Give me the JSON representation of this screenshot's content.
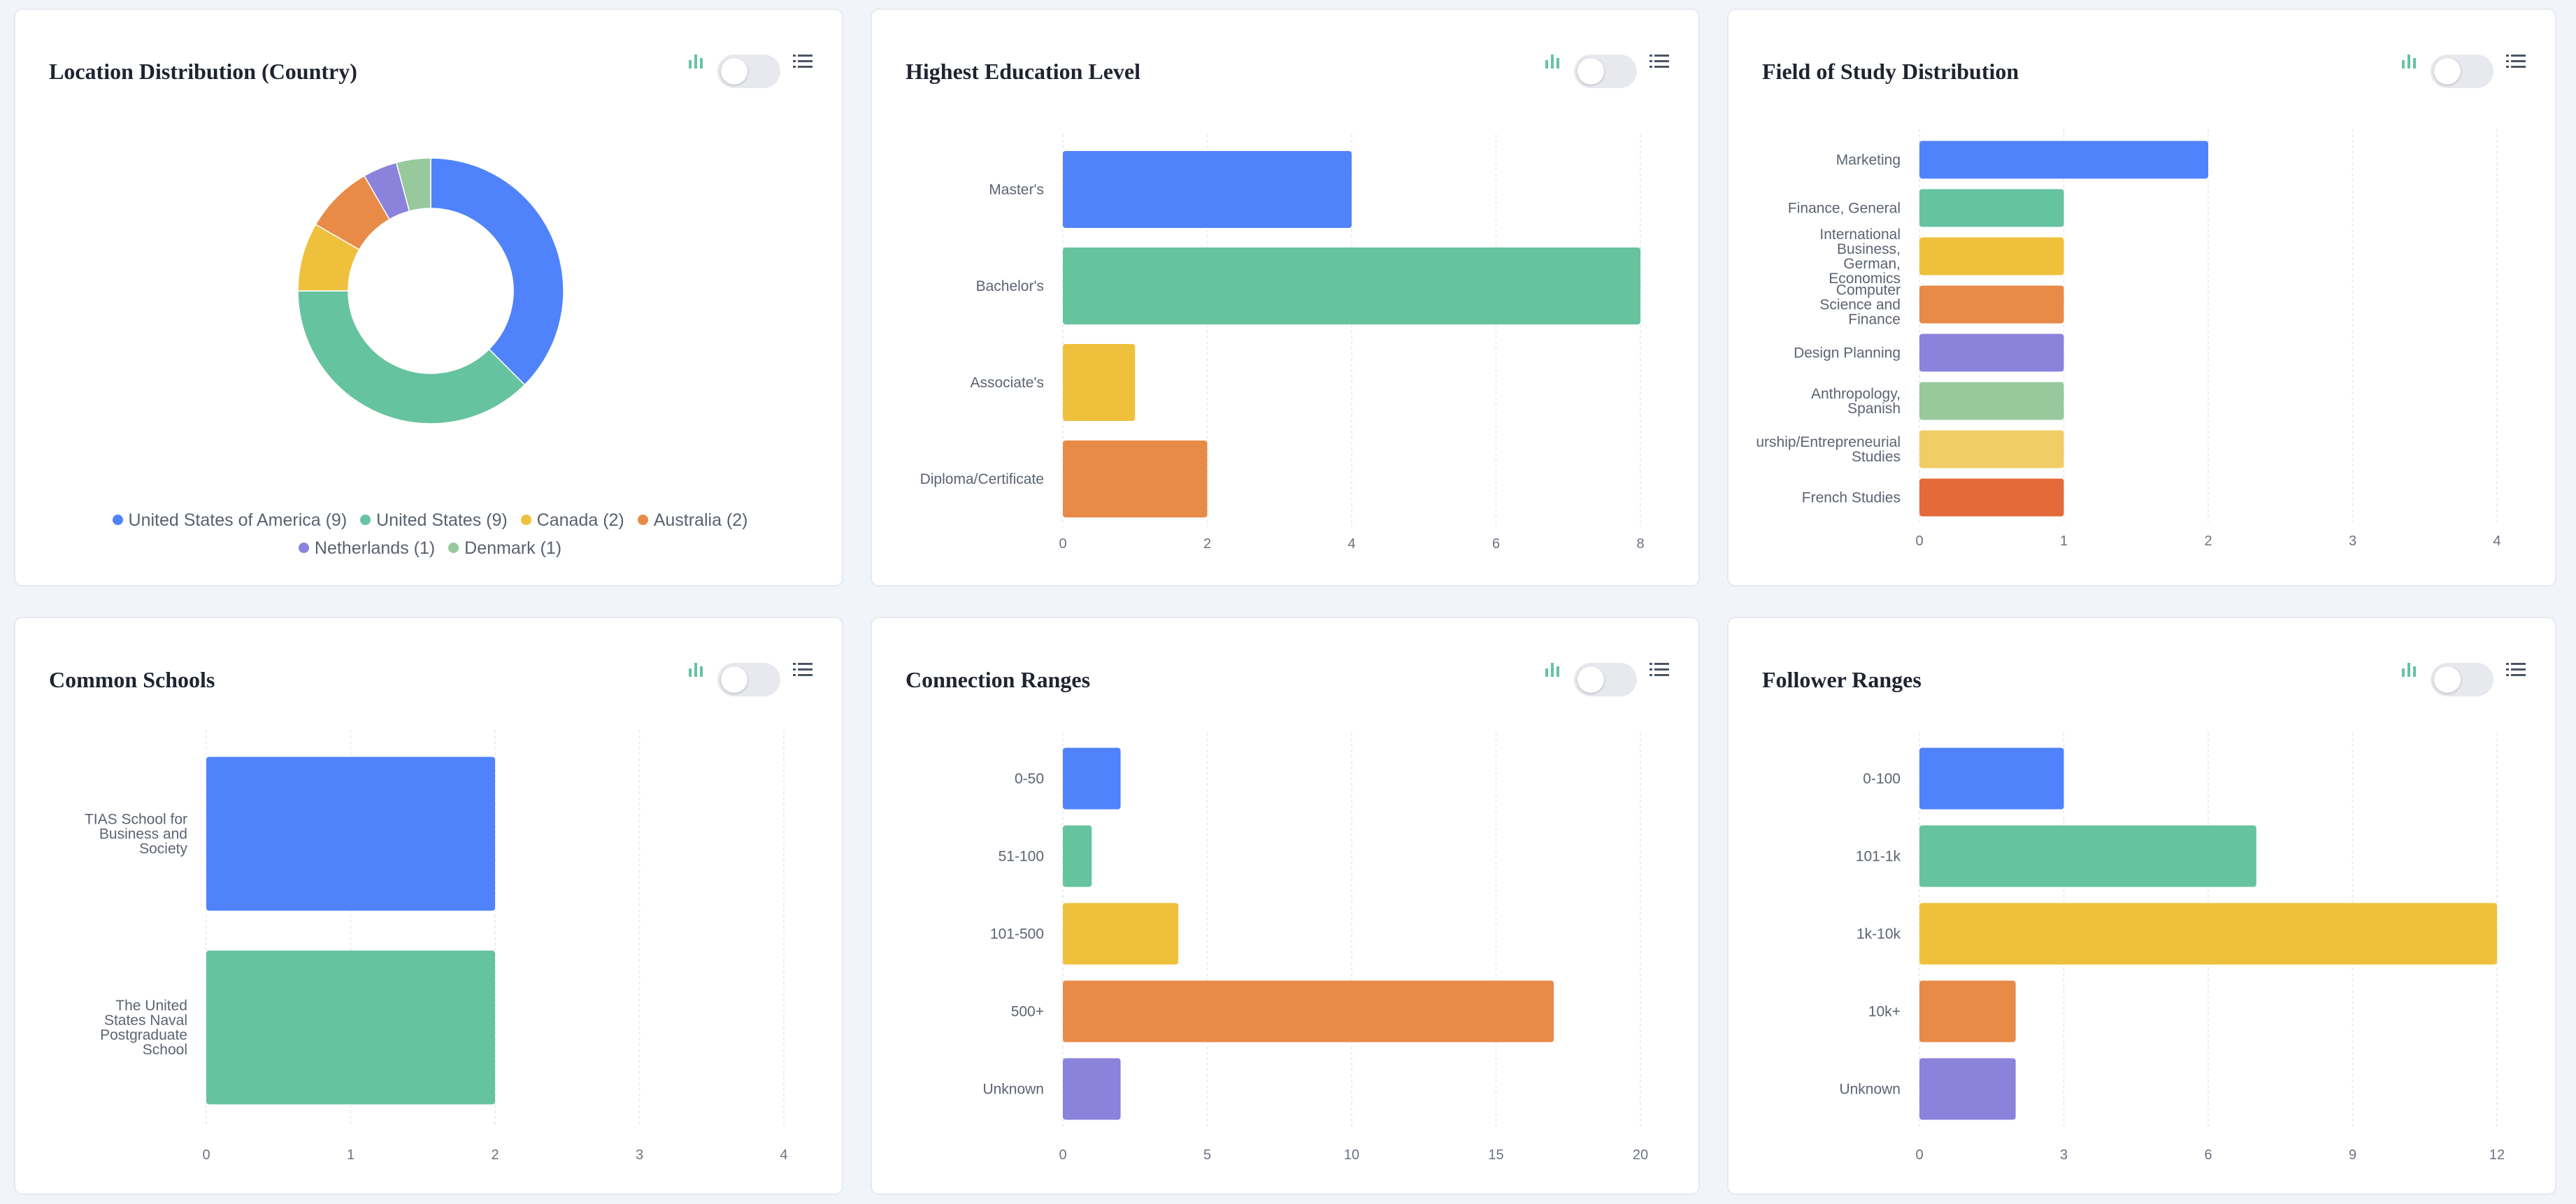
{
  "palette": [
    "#5083fb",
    "#66c39f",
    "#efc03c",
    "#e88b48",
    "#8b82dc",
    "#97c99d",
    "#f1cd65",
    "#e46a3a"
  ],
  "cards": [
    {
      "id": "location-distribution",
      "title": "Location Distribution (Country)",
      "chart_data": {
        "type": "pie",
        "title": "Location Distribution (Country)",
        "labels": [
          "United States of America",
          "United States",
          "Canada",
          "Australia",
          "Netherlands",
          "Denmark"
        ],
        "values": [
          9,
          9,
          2,
          2,
          1,
          1
        ],
        "legend_labels": [
          "United States of America (9)",
          "United States (9)",
          "Canada (2)",
          "Australia (2)",
          "Netherlands (1)",
          "Denmark (1)"
        ],
        "colors": [
          "#5083fb",
          "#66c39f",
          "#efc03c",
          "#e88b48",
          "#8b82dc",
          "#97c99d"
        ],
        "style": "donut",
        "start_angle_deg": 0,
        "legend_position": "bottom"
      }
    },
    {
      "id": "highest-education",
      "title": "Highest Education Level",
      "chart_data": {
        "type": "bar",
        "orientation": "horizontal",
        "categories": [
          "Master's",
          "Bachelor's",
          "Associate's",
          "Diploma/Certificate"
        ],
        "values": [
          4,
          8,
          1,
          2
        ],
        "xlim": [
          0,
          8
        ],
        "xticks": [
          0,
          2,
          4,
          6,
          8
        ],
        "grid": true,
        "colors": [
          "#5083fb",
          "#66c39f",
          "#efc03c",
          "#e88b48"
        ]
      }
    },
    {
      "id": "field-of-study",
      "title": "Field of Study Distribution",
      "chart_data": {
        "type": "bar",
        "orientation": "horizontal",
        "categories": [
          "Marketing",
          "Finance, General",
          "International Business, German, Economics",
          "Computer Science and Finance",
          "Design Planning",
          "Anthropology, Spanish",
          "Entrepreneurship/Entrepreneurial Studies",
          "French Studies"
        ],
        "display_labels": [
          [
            "Marketing"
          ],
          [
            "Finance, General"
          ],
          [
            "International",
            "Business,",
            "German,",
            "Economics"
          ],
          [
            "Computer",
            "Science and",
            "Finance"
          ],
          [
            "Design Planning"
          ],
          [
            "Anthropology,",
            "Spanish"
          ],
          [
            "urship/Entrepreneurial",
            "Studies"
          ],
          [
            "French Studies"
          ]
        ],
        "values": [
          2,
          1,
          1,
          1,
          1,
          1,
          1,
          1
        ],
        "xlim": [
          0,
          4
        ],
        "xticks": [
          0,
          1,
          2,
          3,
          4
        ],
        "grid": true,
        "colors": [
          "#5083fb",
          "#66c39f",
          "#efc03c",
          "#e88b48",
          "#8b82dc",
          "#97c99d",
          "#f1cd65",
          "#e46a3a"
        ]
      }
    },
    {
      "id": "common-schools",
      "title": "Common Schools",
      "chart_data": {
        "type": "bar",
        "orientation": "horizontal",
        "categories": [
          "TIAS School for Business and Society",
          "The United States Naval Postgraduate School"
        ],
        "display_labels": [
          [
            "TIAS School for",
            "Business and",
            "Society"
          ],
          [
            "The United",
            "States Naval",
            "Postgraduate",
            "School"
          ]
        ],
        "values": [
          2,
          2
        ],
        "xlim": [
          0,
          4
        ],
        "xticks": [
          0,
          1,
          2,
          3,
          4
        ],
        "grid": true,
        "colors": [
          "#5083fb",
          "#66c39f"
        ]
      }
    },
    {
      "id": "connection-ranges",
      "title": "Connection Ranges",
      "chart_data": {
        "type": "bar",
        "orientation": "horizontal",
        "categories": [
          "0-50",
          "51-100",
          "101-500",
          "500+",
          "Unknown"
        ],
        "values": [
          2,
          1,
          4,
          17,
          2
        ],
        "xlim": [
          0,
          20
        ],
        "xticks": [
          0,
          5,
          10,
          15,
          20
        ],
        "grid": true,
        "colors": [
          "#5083fb",
          "#66c39f",
          "#efc03c",
          "#e88b48",
          "#8b82dc"
        ]
      }
    },
    {
      "id": "follower-ranges",
      "title": "Follower Ranges",
      "chart_data": {
        "type": "bar",
        "orientation": "horizontal",
        "categories": [
          "0-100",
          "101-1k",
          "1k-10k",
          "10k+",
          "Unknown"
        ],
        "values": [
          3,
          7,
          12,
          2,
          2
        ],
        "xlim": [
          0,
          12
        ],
        "xticks": [
          0,
          3,
          6,
          9,
          12
        ],
        "grid": true,
        "colors": [
          "#5083fb",
          "#66c39f",
          "#efc03c",
          "#e88b48",
          "#8b82dc"
        ]
      }
    }
  ],
  "controls": {
    "chart_icon": "bar-chart-icon",
    "toggle": "view-toggle",
    "toggle_on": false,
    "list_icon": "list-icon",
    "accent": "#66c39f"
  }
}
